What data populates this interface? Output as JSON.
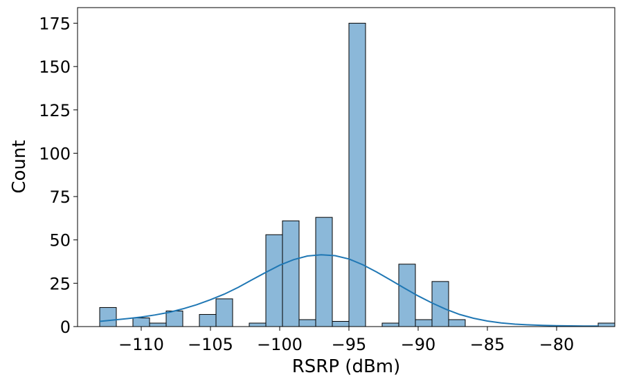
{
  "chart_data": {
    "type": "bar",
    "subtype": "histogram_with_kde",
    "title": "",
    "xlabel": "RSRP (dBm)",
    "ylabel": "Count",
    "xlim": [
      -114.6,
      -75.8
    ],
    "ylim": [
      0,
      184
    ],
    "xticks": [
      -110,
      -105,
      -100,
      -95,
      -90,
      -85,
      -80
    ],
    "xtick_labels": [
      "−110",
      "−105",
      "−100",
      "−95",
      "−90",
      "−85",
      "−80"
    ],
    "yticks": [
      0,
      25,
      50,
      75,
      100,
      125,
      150,
      175
    ],
    "ytick_labels": [
      "0",
      "25",
      "50",
      "75",
      "100",
      "125",
      "150",
      "175"
    ],
    "grid": false,
    "legend": "none",
    "bar_color": "#8bb8d9",
    "bar_edge_color": "#000000",
    "kde_color": "#1f77b4",
    "bin_width": 1.2,
    "bins": [
      {
        "x0": -113.0,
        "count": 11
      },
      {
        "x0": -111.8,
        "count": 0
      },
      {
        "x0": -110.6,
        "count": 5
      },
      {
        "x0": -109.4,
        "count": 2
      },
      {
        "x0": -108.2,
        "count": 9
      },
      {
        "x0": -107.0,
        "count": 0
      },
      {
        "x0": -105.8,
        "count": 7
      },
      {
        "x0": -104.6,
        "count": 16
      },
      {
        "x0": -103.4,
        "count": 0
      },
      {
        "x0": -102.2,
        "count": 2
      },
      {
        "x0": -101.0,
        "count": 53
      },
      {
        "x0": -99.8,
        "count": 61
      },
      {
        "x0": -98.6,
        "count": 4
      },
      {
        "x0": -97.4,
        "count": 63
      },
      {
        "x0": -96.2,
        "count": 3
      },
      {
        "x0": -95.0,
        "count": 175
      },
      {
        "x0": -93.8,
        "count": 0
      },
      {
        "x0": -92.6,
        "count": 2
      },
      {
        "x0": -91.4,
        "count": 36
      },
      {
        "x0": -90.2,
        "count": 4
      },
      {
        "x0": -89.0,
        "count": 26
      },
      {
        "x0": -87.8,
        "count": 4
      },
      {
        "x0": -77.0,
        "count": 2
      }
    ],
    "kde": {
      "x": [
        -113,
        -112,
        -111,
        -110,
        -109,
        -108,
        -107,
        -106,
        -105,
        -104,
        -103,
        -102,
        -101,
        -100,
        -99,
        -98,
        -97,
        -96,
        -95,
        -94,
        -93,
        -92,
        -91,
        -90,
        -89,
        -88,
        -87,
        -86,
        -85,
        -84,
        -83,
        -82,
        -81,
        -80,
        -79,
        -78,
        -77
      ],
      "y": [
        3,
        3.8,
        4.6,
        5.5,
        6.7,
        8.2,
        10.2,
        12.6,
        15.5,
        18.7,
        22.6,
        27,
        31.3,
        35.4,
        38.6,
        40.7,
        41.4,
        40.9,
        39,
        35.7,
        31.5,
        26.9,
        22.2,
        17.7,
        13.6,
        10,
        7,
        4.8,
        3.2,
        2.1,
        1.4,
        1,
        0.7,
        0.5,
        0.4,
        0.3,
        0.3
      ]
    }
  }
}
